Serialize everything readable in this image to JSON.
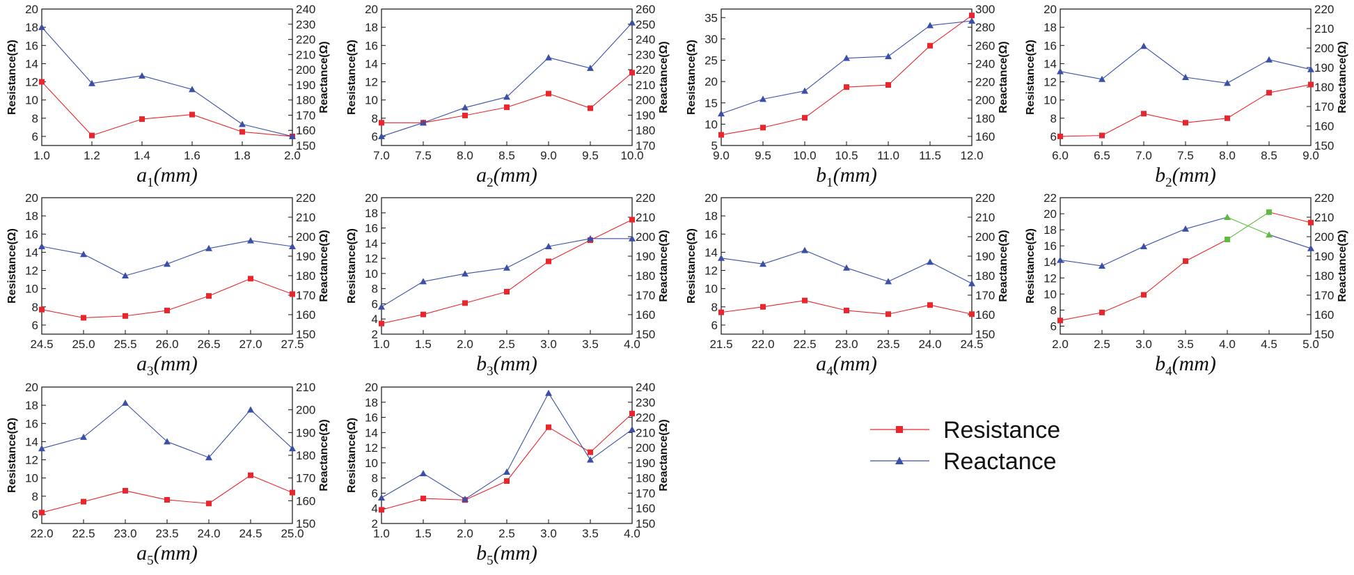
{
  "legend": {
    "resistance_label": "Resistance",
    "reactance_label": "Reactance",
    "resistance_color": "#e8262d",
    "reactance_color": "#3a4fa8",
    "placement": "lower-right"
  },
  "chart_data": [
    {
      "type": "line",
      "xlabel_symbol": "a",
      "xlabel_sub": "1",
      "xlabel_unit": "(mm)",
      "ylabel_left": "Resistance(Ω)",
      "ylabel_right": "Reactance(Ω)",
      "x": [
        1.0,
        1.2,
        1.4,
        1.6,
        1.8,
        2.0
      ],
      "xticks": [
        "1.0",
        "1.2",
        "1.4",
        "1.6",
        "1.8",
        "2.0"
      ],
      "xlim": [
        1.0,
        2.0
      ],
      "ylim_left": [
        5,
        20
      ],
      "yticks_left": [
        "6",
        "8",
        "10",
        "12",
        "14",
        "16",
        "18",
        "20"
      ],
      "ylim_right": [
        150,
        240
      ],
      "yticks_right": [
        "150",
        "160",
        "170",
        "180",
        "190",
        "200",
        "210",
        "220",
        "230",
        "240"
      ],
      "series": [
        {
          "name": "Resistance",
          "axis": "left",
          "marker": "square",
          "values": [
            12.0,
            6.1,
            7.9,
            8.4,
            6.5,
            6.0
          ]
        },
        {
          "name": "Reactance",
          "axis": "right",
          "marker": "triangle",
          "values": [
            228,
            191,
            196,
            187,
            164,
            156
          ]
        }
      ]
    },
    {
      "type": "line",
      "xlabel_symbol": "a",
      "xlabel_sub": "2",
      "xlabel_unit": "(mm)",
      "ylabel_left": "Resistance(Ω)",
      "ylabel_right": "Reactance(Ω)",
      "x": [
        7.0,
        7.5,
        8.0,
        8.5,
        9.0,
        9.5,
        10.0
      ],
      "xticks": [
        "7.0",
        "7.5",
        "8.0",
        "8.5",
        "9.0",
        "9.5",
        "10.0"
      ],
      "xlim": [
        7.0,
        10.0
      ],
      "ylim_left": [
        5,
        20
      ],
      "yticks_left": [
        "6",
        "8",
        "10",
        "12",
        "14",
        "16",
        "18",
        "20"
      ],
      "ylim_right": [
        170,
        260
      ],
      "yticks_right": [
        "170",
        "180",
        "190",
        "200",
        "210",
        "220",
        "230",
        "240",
        "250",
        "260"
      ],
      "series": [
        {
          "name": "Resistance",
          "axis": "left",
          "marker": "square",
          "values": [
            7.5,
            7.5,
            8.3,
            9.2,
            10.7,
            9.1,
            13.0
          ]
        },
        {
          "name": "Reactance",
          "axis": "right",
          "marker": "triangle",
          "values": [
            176,
            185,
            195,
            202,
            228,
            221,
            251
          ]
        }
      ]
    },
    {
      "type": "line",
      "xlabel_symbol": "b",
      "xlabel_sub": "1",
      "xlabel_unit": "(mm)",
      "ylabel_left": "Resistance(Ω)",
      "ylabel_right": "Reactance(Ω)",
      "x": [
        9.0,
        9.5,
        10.0,
        10.5,
        11.0,
        11.5,
        12.0
      ],
      "xticks": [
        "9.0",
        "9.5",
        "10.0",
        "10.5",
        "11.0",
        "11.5",
        "12.0"
      ],
      "xlim": [
        9.0,
        12.0
      ],
      "ylim_left": [
        5,
        37
      ],
      "yticks_left": [
        "5",
        "10",
        "15",
        "20",
        "25",
        "30",
        "35"
      ],
      "ylim_right": [
        150,
        300
      ],
      "yticks_right": [
        "160",
        "180",
        "200",
        "220",
        "240",
        "260",
        "280",
        "300"
      ],
      "series": [
        {
          "name": "Resistance",
          "axis": "left",
          "marker": "square",
          "values": [
            7.5,
            9.2,
            11.5,
            18.7,
            19.2,
            28.4,
            35.5
          ]
        },
        {
          "name": "Reactance",
          "axis": "right",
          "marker": "triangle",
          "values": [
            185,
            201,
            210,
            246,
            248,
            282,
            287
          ]
        }
      ]
    },
    {
      "type": "line",
      "xlabel_symbol": "b",
      "xlabel_sub": "2",
      "xlabel_unit": "(mm)",
      "ylabel_left": "Resistance(Ω)",
      "ylabel_right": "Reactance(Ω)",
      "x": [
        6.0,
        6.5,
        7.0,
        7.5,
        8.0,
        8.5,
        9.0
      ],
      "xticks": [
        "6.0",
        "6.5",
        "7.0",
        "7.5",
        "8.0",
        "8.5",
        "9.0"
      ],
      "xlim": [
        6.0,
        9.0
      ],
      "ylim_left": [
        5,
        20
      ],
      "yticks_left": [
        "6",
        "8",
        "10",
        "12",
        "14",
        "16",
        "18",
        "20"
      ],
      "ylim_right": [
        150,
        220
      ],
      "yticks_right": [
        "150",
        "160",
        "170",
        "180",
        "190",
        "200",
        "210",
        "220"
      ],
      "series": [
        {
          "name": "Resistance",
          "axis": "left",
          "marker": "square",
          "values": [
            6.0,
            6.1,
            8.5,
            7.5,
            8.0,
            10.8,
            11.7
          ]
        },
        {
          "name": "Reactance",
          "axis": "right",
          "marker": "triangle",
          "values": [
            188,
            184,
            201,
            185,
            182,
            194,
            189
          ]
        }
      ]
    },
    {
      "type": "line",
      "xlabel_symbol": "a",
      "xlabel_sub": "3",
      "xlabel_unit": "(mm)",
      "ylabel_left": "Resistance(Ω)",
      "ylabel_right": "Reactance(Ω)",
      "x": [
        24.5,
        25.0,
        25.5,
        26.0,
        26.5,
        27.0,
        27.5
      ],
      "xticks": [
        "24.5",
        "25.0",
        "25.5",
        "26.0",
        "26.5",
        "27.0",
        "27.5"
      ],
      "xlim": [
        24.5,
        27.5
      ],
      "ylim_left": [
        5,
        20
      ],
      "yticks_left": [
        "6",
        "8",
        "10",
        "12",
        "14",
        "16",
        "18",
        "20"
      ],
      "ylim_right": [
        150,
        220
      ],
      "yticks_right": [
        "150",
        "160",
        "170",
        "180",
        "190",
        "200",
        "210",
        "220"
      ],
      "series": [
        {
          "name": "Resistance",
          "axis": "left",
          "marker": "square",
          "values": [
            7.7,
            6.8,
            7.0,
            7.6,
            9.2,
            11.1,
            9.4
          ]
        },
        {
          "name": "Reactance",
          "axis": "right",
          "marker": "triangle",
          "values": [
            195,
            191,
            180,
            186,
            194,
            198,
            195
          ]
        }
      ]
    },
    {
      "type": "line",
      "xlabel_symbol": "b",
      "xlabel_sub": "3",
      "xlabel_unit": "(mm)",
      "ylabel_left": "Resistance(Ω)",
      "ylabel_right": "Reactance(Ω)",
      "x": [
        1.0,
        1.5,
        2.0,
        2.5,
        3.0,
        3.5,
        4.0
      ],
      "xticks": [
        "1.0",
        "1.5",
        "2.0",
        "2.5",
        "3.0",
        "3.5",
        "4.0"
      ],
      "xlim": [
        1.0,
        4.0
      ],
      "ylim_left": [
        2,
        20
      ],
      "yticks_left": [
        "2",
        "4",
        "6",
        "8",
        "10",
        "12",
        "14",
        "16",
        "18",
        "20"
      ],
      "ylim_right": [
        150,
        220
      ],
      "yticks_right": [
        "150",
        "160",
        "170",
        "180",
        "190",
        "200",
        "210",
        "220"
      ],
      "series": [
        {
          "name": "Resistance",
          "axis": "left",
          "marker": "square",
          "values": [
            3.4,
            4.6,
            6.1,
            7.6,
            11.6,
            14.4,
            17.1
          ]
        },
        {
          "name": "Reactance",
          "axis": "right",
          "marker": "triangle",
          "values": [
            164,
            177,
            181,
            184,
            195,
            199,
            199
          ]
        }
      ]
    },
    {
      "type": "line",
      "xlabel_symbol": "a",
      "xlabel_sub": "4",
      "xlabel_unit": "(mm)",
      "ylabel_left": "Resistance(Ω)",
      "ylabel_right": "Reactance(Ω)",
      "x": [
        21.5,
        22.0,
        22.5,
        23.0,
        23.5,
        24.0,
        24.5
      ],
      "xticks": [
        "21.5",
        "22.0",
        "22.5",
        "23.0",
        "23.5",
        "24.0",
        "24.5"
      ],
      "xlim": [
        21.5,
        24.5
      ],
      "ylim_left": [
        5,
        20
      ],
      "yticks_left": [
        "6",
        "8",
        "10",
        "12",
        "14",
        "16",
        "18",
        "20"
      ],
      "ylim_right": [
        150,
        220
      ],
      "yticks_right": [
        "150",
        "160",
        "170",
        "180",
        "190",
        "200",
        "210",
        "220"
      ],
      "series": [
        {
          "name": "Resistance",
          "axis": "left",
          "marker": "square",
          "values": [
            7.4,
            8.0,
            8.7,
            7.6,
            7.2,
            8.2,
            7.2
          ]
        },
        {
          "name": "Reactance",
          "axis": "right",
          "marker": "triangle",
          "values": [
            189,
            186,
            193,
            184,
            177,
            187,
            176
          ]
        }
      ]
    },
    {
      "type": "line",
      "xlabel_symbol": "b",
      "xlabel_sub": "4",
      "xlabel_unit": "(mm)",
      "ylabel_left": "Resistance(Ω)",
      "ylabel_right": "Reactance(Ω)",
      "x": [
        2.0,
        2.5,
        3.0,
        3.5,
        4.0,
        4.5,
        5.0
      ],
      "xticks": [
        "2.0",
        "2.5",
        "3.0",
        "3.5",
        "4.0",
        "4.5",
        "5.0"
      ],
      "xlim": [
        2.0,
        5.0
      ],
      "ylim_left": [
        5,
        22
      ],
      "yticks_left": [
        "6",
        "8",
        "10",
        "12",
        "14",
        "16",
        "18",
        "20",
        "22"
      ],
      "ylim_right": [
        150,
        220
      ],
      "yticks_right": [
        "150",
        "160",
        "170",
        "180",
        "190",
        "200",
        "210",
        "220"
      ],
      "crossover_color": "#5dbb3f",
      "series": [
        {
          "name": "Resistance",
          "axis": "left",
          "marker": "square",
          "values": [
            6.7,
            7.7,
            9.9,
            14.1,
            16.8,
            20.2,
            18.9
          ]
        },
        {
          "name": "Reactance",
          "axis": "right",
          "marker": "triangle",
          "values": [
            188,
            185,
            195,
            204,
            210,
            201,
            194
          ]
        }
      ]
    },
    {
      "type": "line",
      "xlabel_symbol": "a",
      "xlabel_sub": "5",
      "xlabel_unit": "(mm)",
      "ylabel_left": "Resistance(Ω)",
      "ylabel_right": "Reactance(Ω)",
      "x": [
        22.0,
        22.5,
        23.0,
        23.5,
        24.0,
        24.5,
        25.0
      ],
      "xticks": [
        "22.0",
        "22.5",
        "23.0",
        "23.5",
        "24.0",
        "24.5",
        "25.0"
      ],
      "xlim": [
        22.0,
        25.0
      ],
      "ylim_left": [
        5,
        20
      ],
      "yticks_left": [
        "6",
        "8",
        "10",
        "12",
        "14",
        "16",
        "18",
        "20"
      ],
      "ylim_right": [
        150,
        210
      ],
      "yticks_right": [
        "150",
        "160",
        "170",
        "180",
        "190",
        "200",
        "210"
      ],
      "series": [
        {
          "name": "Resistance",
          "axis": "left",
          "marker": "square",
          "values": [
            6.2,
            7.4,
            8.6,
            7.6,
            7.2,
            10.3,
            8.4
          ]
        },
        {
          "name": "Reactance",
          "axis": "right",
          "marker": "triangle",
          "values": [
            183,
            188,
            203,
            186,
            179,
            200,
            183
          ]
        }
      ]
    },
    {
      "type": "line",
      "xlabel_symbol": "b",
      "xlabel_sub": "5",
      "xlabel_unit": "(mm)",
      "ylabel_left": "Resistance(Ω)",
      "ylabel_right": "Reactance(Ω)",
      "x": [
        1.0,
        1.5,
        2.0,
        2.5,
        3.0,
        3.5,
        4.0
      ],
      "xticks": [
        "1.0",
        "1.5",
        "2.0",
        "2.5",
        "3.0",
        "3.5",
        "4.0"
      ],
      "xlim": [
        1.0,
        4.0
      ],
      "ylim_left": [
        2,
        20
      ],
      "yticks_left": [
        "2",
        "4",
        "6",
        "8",
        "10",
        "12",
        "14",
        "16",
        "18",
        "20"
      ],
      "ylim_right": [
        150,
        240
      ],
      "yticks_right": [
        "150",
        "160",
        "170",
        "180",
        "190",
        "200",
        "210",
        "220",
        "230",
        "240"
      ],
      "series": [
        {
          "name": "Resistance",
          "axis": "left",
          "marker": "square",
          "values": [
            3.8,
            5.3,
            5.1,
            7.6,
            14.7,
            11.4,
            16.5
          ]
        },
        {
          "name": "Reactance",
          "axis": "right",
          "marker": "triangle",
          "values": [
            167,
            183,
            166,
            184,
            236,
            192,
            212
          ]
        }
      ]
    }
  ]
}
